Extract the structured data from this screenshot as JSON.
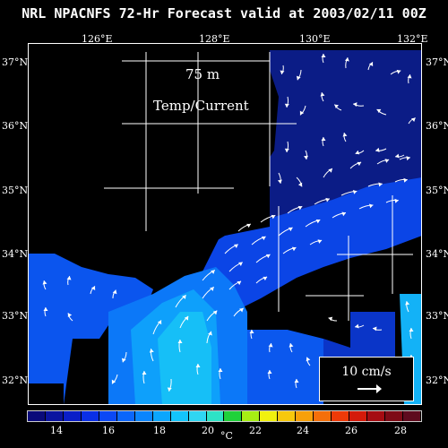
{
  "title": "NRL NPACNFS 72-Hr Forecast valid at 2003/02/11 00Z",
  "depth_label": "75 m",
  "field_label": "Temp/Current",
  "lon_labels": [
    "126°E",
    "128°E",
    "130°E",
    "132°E"
  ],
  "lat_labels": [
    "37°N",
    "36°N",
    "35°N",
    "34°N",
    "33°N",
    "32°N"
  ],
  "scale": {
    "label": "10 cm/s"
  },
  "colorbar": {
    "colors": [
      "#0a0a7a",
      "#0b14a0",
      "#0a1ec8",
      "#0a2fe6",
      "#0b48f6",
      "#0b66fb",
      "#0b85fd",
      "#0ba6fd",
      "#13c4fb",
      "#2fd6f2",
      "#2ee3c6",
      "#1fd13a",
      "#a6ef14",
      "#f1f00e",
      "#f7c80c",
      "#f7a00a",
      "#f56f0a",
      "#ee3a08",
      "#d41a0a",
      "#a50c12",
      "#7e0b16",
      "#5e0b1e"
    ],
    "tick_labels": [
      "14",
      "16",
      "18",
      "20",
      "22",
      "24",
      "26",
      "28"
    ],
    "unit": "°C"
  },
  "colors": {
    "background": "#000000",
    "deep_blue": "#0b1c8a",
    "mid_blue": "#0b5ef0",
    "light_blue": "#18b0f5"
  }
}
